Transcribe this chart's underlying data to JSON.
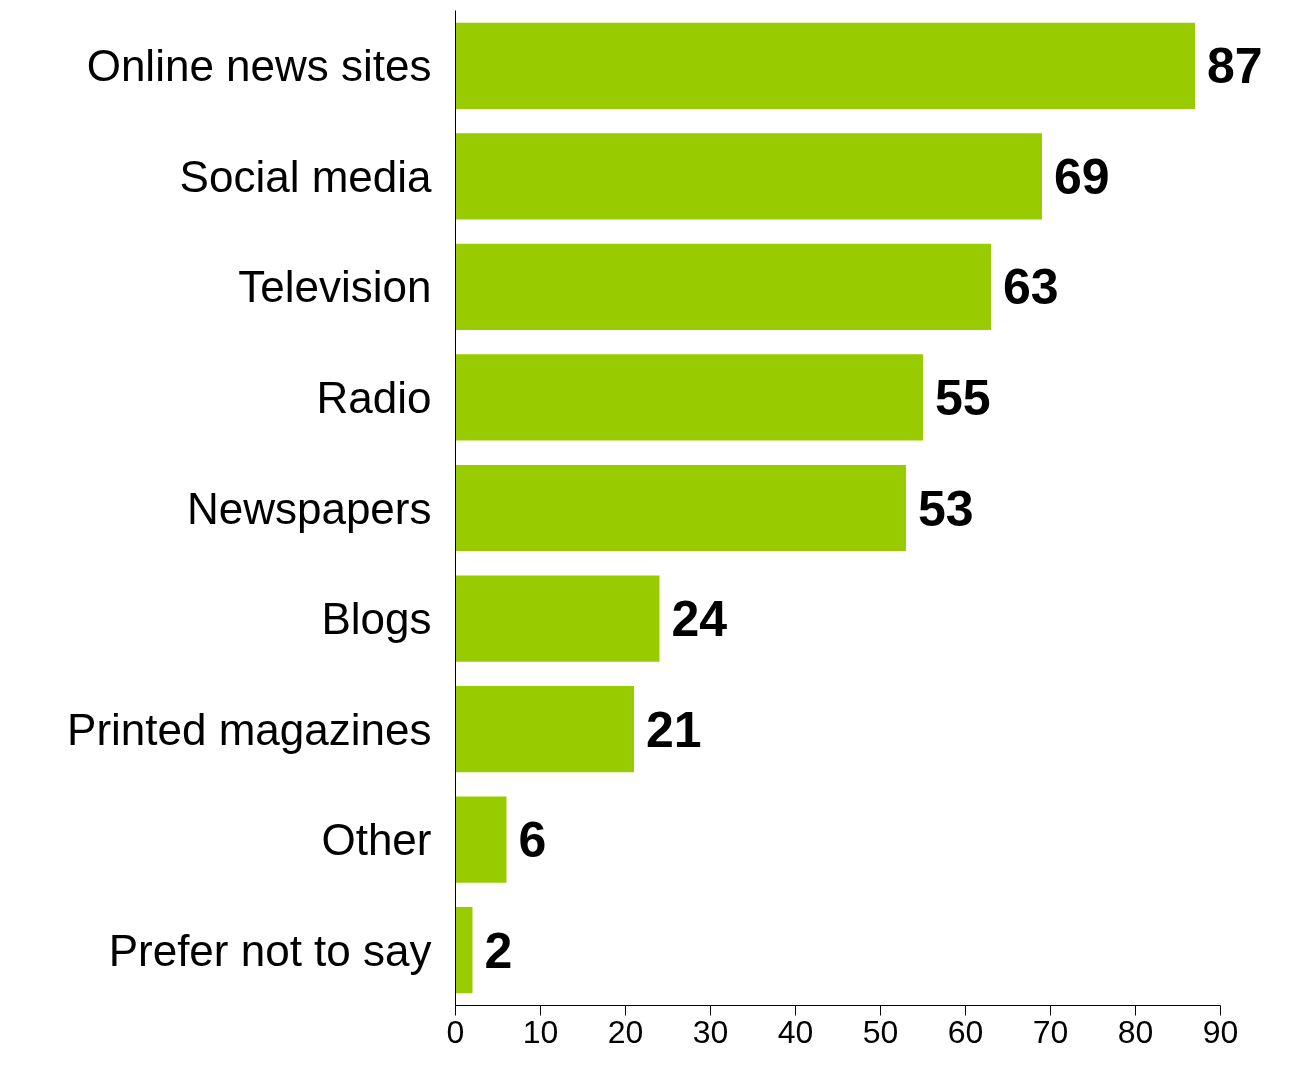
{
  "chart_data": {
    "type": "bar",
    "orientation": "horizontal",
    "categories": [
      "Online news sites",
      "Social media",
      "Television",
      "Radio",
      "Newspapers",
      "Blogs",
      "Printed magazines",
      "Other",
      "Prefer not to say"
    ],
    "values": [
      87,
      69,
      63,
      55,
      53,
      24,
      21,
      6,
      2
    ],
    "color": "#99cc00",
    "xlim": [
      0,
      90
    ],
    "xticks": [
      0,
      10,
      20,
      30,
      40,
      50,
      60,
      70,
      80,
      90
    ],
    "grid": false,
    "data_labels": true
  }
}
